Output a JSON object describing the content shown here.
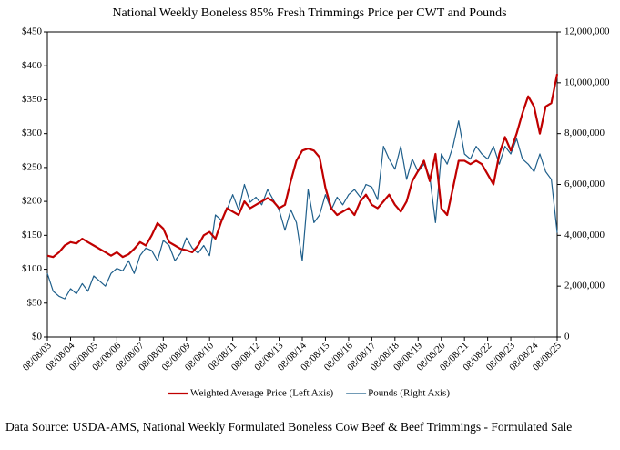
{
  "chart_data": {
    "type": "line",
    "title": "National Weekly Boneless 85% Fresh Trimmings Price per CWT and Pounds",
    "source": "Data Source: USDA-AMS, National Weekly Formulated Boneless Cow Beef & Beef Trimmings - Formulated Sale",
    "x": [
      "08/08/03",
      "11/08/03",
      "02/08/04",
      "05/08/04",
      "08/08/04",
      "11/08/04",
      "02/08/05",
      "05/08/05",
      "08/08/05",
      "11/08/05",
      "02/08/06",
      "05/08/06",
      "08/08/06",
      "11/08/06",
      "02/08/07",
      "05/08/07",
      "08/08/07",
      "11/08/07",
      "02/08/08",
      "05/08/08",
      "08/08/08",
      "11/08/08",
      "02/08/09",
      "05/08/09",
      "08/08/09",
      "11/08/09",
      "02/08/10",
      "05/08/10",
      "08/08/10",
      "11/08/10",
      "02/08/11",
      "05/08/11",
      "08/08/11",
      "11/08/11",
      "02/08/12",
      "05/08/12",
      "08/08/12",
      "11/08/12",
      "02/08/13",
      "05/08/13",
      "08/08/13",
      "11/08/13",
      "02/08/14",
      "05/08/14",
      "08/08/14",
      "11/08/14",
      "02/08/15",
      "05/08/15",
      "08/08/15",
      "11/08/15",
      "02/08/16",
      "05/08/16",
      "08/08/16",
      "11/08/16",
      "02/08/17",
      "05/08/17",
      "08/08/17",
      "11/08/17",
      "02/08/18",
      "05/08/18",
      "08/08/18",
      "11/08/18",
      "02/08/19",
      "05/08/19",
      "08/08/19",
      "11/08/19",
      "02/08/20",
      "05/08/20",
      "08/08/20",
      "11/08/20",
      "02/08/21",
      "05/08/21",
      "08/08/21",
      "11/08/21",
      "02/08/22",
      "05/08/22",
      "08/08/22",
      "11/08/22",
      "02/08/23",
      "05/08/23",
      "08/08/23",
      "11/08/23",
      "02/08/24",
      "05/08/24",
      "08/08/24",
      "11/08/24",
      "02/08/25",
      "05/08/25",
      "08/08/25"
    ],
    "series": [
      {
        "name": "Weighted Average Price (Left Axis)",
        "color": "#c00000",
        "axis": "y",
        "values": [
          120,
          118,
          125,
          135,
          140,
          138,
          145,
          140,
          135,
          130,
          125,
          120,
          125,
          118,
          122,
          130,
          140,
          135,
          150,
          168,
          160,
          140,
          135,
          130,
          128,
          125,
          135,
          150,
          155,
          145,
          170,
          190,
          185,
          180,
          200,
          190,
          195,
          200,
          205,
          200,
          190,
          195,
          230,
          260,
          275,
          278,
          275,
          265,
          220,
          190,
          180,
          185,
          190,
          180,
          200,
          210,
          195,
          190,
          200,
          210,
          195,
          185,
          200,
          230,
          245,
          260,
          230,
          270,
          190,
          180,
          220,
          260,
          260,
          255,
          260,
          255,
          240,
          225,
          270,
          295,
          275,
          300,
          330,
          355,
          340,
          300,
          340,
          345,
          388
        ]
      },
      {
        "name": "Pounds (Right Axis)",
        "color": "#1f5f8b",
        "axis": "y2",
        "values": [
          2500000,
          1800000,
          1600000,
          1500000,
          1900000,
          1700000,
          2100000,
          1800000,
          2400000,
          2200000,
          2000000,
          2500000,
          2700000,
          2600000,
          3000000,
          2500000,
          3200000,
          3500000,
          3400000,
          3000000,
          3800000,
          3600000,
          3000000,
          3300000,
          3900000,
          3500000,
          3300000,
          3600000,
          3200000,
          4800000,
          4600000,
          5000000,
          5600000,
          5000000,
          6000000,
          5300000,
          5500000,
          5200000,
          5800000,
          5400000,
          5000000,
          4200000,
          5000000,
          4500000,
          3000000,
          5800000,
          4500000,
          4800000,
          5600000,
          5000000,
          5500000,
          5200000,
          5600000,
          5800000,
          5500000,
          6000000,
          5900000,
          5400000,
          7500000,
          7000000,
          6600000,
          7500000,
          6200000,
          7000000,
          6500000,
          6800000,
          6300000,
          4500000,
          7200000,
          6800000,
          7500000,
          8500000,
          7200000,
          7000000,
          7500000,
          7200000,
          7000000,
          7500000,
          6800000,
          7500000,
          7200000,
          7800000,
          7000000,
          6800000,
          6500000,
          7200000,
          6500000,
          6200000,
          4100000
        ]
      }
    ],
    "xlim": [
      "08/08/03",
      "08/08/25"
    ],
    "xticks": [
      "08/08/03",
      "08/08/04",
      "08/08/05",
      "08/08/06",
      "08/08/07",
      "08/08/08",
      "08/08/09",
      "08/08/10",
      "08/08/11",
      "08/08/12",
      "08/08/13",
      "08/08/14",
      "08/08/15",
      "08/08/16",
      "08/08/17",
      "08/08/18",
      "08/08/19",
      "08/08/20",
      "08/08/21",
      "08/08/22",
      "08/08/23",
      "08/08/24",
      "08/08/25"
    ],
    "ylim": [
      0,
      450
    ],
    "yticks": [
      {
        "value": 0,
        "label": "$0"
      },
      {
        "value": 50,
        "label": "$50"
      },
      {
        "value": 100,
        "label": "$100"
      },
      {
        "value": 150,
        "label": "$150"
      },
      {
        "value": 200,
        "label": "$200"
      },
      {
        "value": 250,
        "label": "$250"
      },
      {
        "value": 300,
        "label": "$300"
      },
      {
        "value": 350,
        "label": "$350"
      },
      {
        "value": 400,
        "label": "$400"
      },
      {
        "value": 450,
        "label": "$450"
      }
    ],
    "y2lim": [
      0,
      12000000
    ],
    "y2ticks": [
      0,
      {
        "value": 2000000,
        "label": "2,000,000"
      },
      {
        "value": 4000000,
        "label": "4,000,000"
      },
      {
        "value": 6000000,
        "label": "6,000,000"
      },
      {
        "value": 8000000,
        "label": "8,000,000"
      },
      {
        "value": 10000000,
        "label": "10,000,000"
      },
      {
        "value": 12000000,
        "label": "12,000,000"
      }
    ],
    "grid": false,
    "legend": "bottom"
  }
}
